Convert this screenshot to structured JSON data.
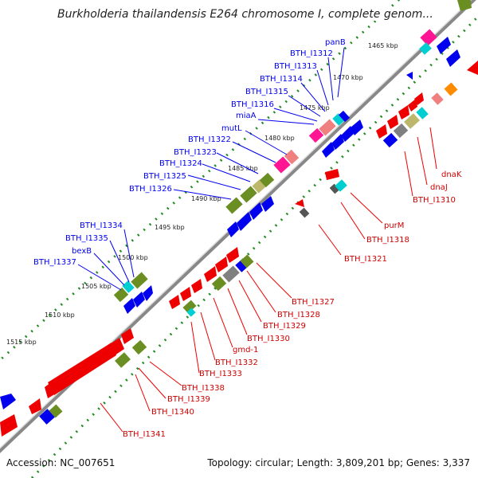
{
  "header": {
    "title": "Burkholderia thailandensis E264 chromosome I, complete genom..."
  },
  "footer": {
    "accession": "Accession: NC_007651",
    "summary": "Topology: circular; Length: 3,809,201 bp; Genes: 3,337"
  },
  "ticks": [
    "1465 kbp",
    "1470 kbp",
    "1475 kbp",
    "1480 kbp",
    "1485 kbp",
    "1490 kbp",
    "1495 kbp",
    "1500 kbp",
    "1505 kbp",
    "1510 kbp",
    "1515 kbp"
  ],
  "labels_forward": [
    "panB",
    "BTH_I1312",
    "BTH_I1313",
    "BTH_I1314",
    "BTH_I1315",
    "BTH_I1316",
    "miaA",
    "mutL",
    "BTH_I1322",
    "BTH_I1323",
    "BTH_I1324",
    "BTH_I1325",
    "BTH_I1326",
    "BTH_I1334",
    "BTH_I1335",
    "bexB",
    "BTH_I1337"
  ],
  "labels_reverse": [
    "dnaK",
    "dnaJ",
    "BTH_I1310",
    "purM",
    "BTH_I1318",
    "BTH_I1321",
    "BTH_I1327",
    "BTH_I1328",
    "BTH_I1329",
    "BTH_I1330",
    "gmd-1",
    "BTH_I1332",
    "BTH_I1333",
    "BTH_I1338",
    "BTH_I1339",
    "BTH_I1340",
    "BTH_I1341"
  ],
  "colors": {
    "forward": "#0000ee",
    "reverse": "#ee0000",
    "olive": "#6b8e23",
    "khaki": "#bdb76b",
    "pink": "#ff1493",
    "cyan": "#00ced1",
    "backbone": "#888888",
    "dots": "#228b22"
  }
}
